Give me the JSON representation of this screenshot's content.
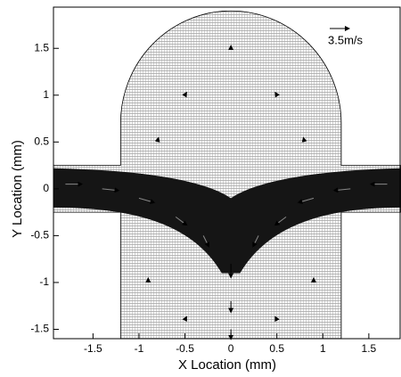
{
  "chart_data": {
    "type": "quiver",
    "xlabel": "X Location (mm)",
    "ylabel": "Y Location (mm)",
    "xlim": [
      -1.93,
      1.85
    ],
    "ylim": [
      -1.6,
      1.94
    ],
    "xticks": [
      -1.5,
      -1,
      -0.5,
      0,
      0.5,
      1,
      1.5
    ],
    "yticks": [
      -1.5,
      -1,
      -0.5,
      0,
      0.5,
      1,
      1.5
    ],
    "reference": {
      "value": 3.5,
      "label": "3.5m/s"
    },
    "color": "#000000",
    "series": [
      {
        "x": [
          -1.8,
          -1.4,
          -1.0,
          -0.6,
          -0.3,
          1.7,
          1.3,
          0.9,
          0.6,
          0.3,
          0,
          0,
          0,
          -0.5,
          0.5,
          0,
          -0.8,
          0.8,
          -0.9,
          0.9,
          -0.5,
          0.5
        ],
        "y": [
          0.05,
          0.0,
          -0.1,
          -0.3,
          -0.5,
          0.05,
          0.0,
          -0.1,
          -0.3,
          -0.5,
          -0.8,
          -1.2,
          -1.5,
          1.0,
          1.0,
          1.5,
          0.5,
          0.5,
          -1.0,
          -1.0,
          -1.4,
          -1.4
        ],
        "u": [
          3,
          3,
          2.8,
          2,
          1,
          -3,
          -3,
          -2.8,
          -2,
          -1,
          0,
          0,
          0,
          0.3,
          -0.3,
          0,
          0.2,
          -0.2,
          0,
          0,
          0.3,
          -0.3
        ],
        "v": [
          0,
          -0.3,
          -0.8,
          -1.5,
          -2,
          0,
          -0.3,
          -0.8,
          -1.5,
          -2,
          -2.5,
          -2,
          -1.8,
          0.5,
          0.5,
          0.5,
          0.8,
          0.8,
          0.8,
          0.8,
          0.6,
          0.6
        ]
      }
    ]
  }
}
